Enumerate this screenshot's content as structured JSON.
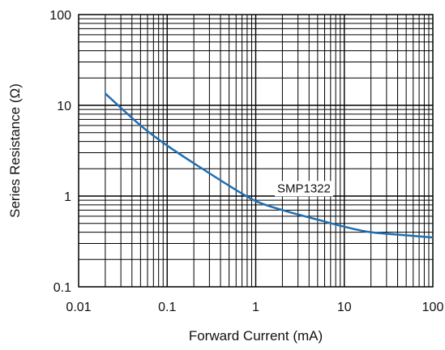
{
  "chart_data": {
    "type": "line",
    "xlabel": "Forward Current (mA)",
    "ylabel": "Series Resistance (Ω)",
    "x_scale": "log",
    "y_scale": "log",
    "xlim": [
      0.01,
      100
    ],
    "ylim": [
      0.1,
      100
    ],
    "grid": true,
    "x_ticks": [
      "0.01",
      "0.1",
      "1",
      "10",
      "100"
    ],
    "y_ticks": [
      "0.1",
      "1",
      "10",
      "100"
    ],
    "series": [
      {
        "name": "SMP1322",
        "color": "#1f6fb2",
        "x": [
          0.02,
          0.05,
          0.1,
          0.2,
          0.5,
          1,
          2,
          5,
          10,
          20,
          50,
          100
        ],
        "y": [
          13.5,
          6.0,
          3.6,
          2.3,
          1.3,
          0.88,
          0.7,
          0.55,
          0.46,
          0.4,
          0.37,
          0.35
        ]
      }
    ],
    "annotations": [
      {
        "text": "SMP1322",
        "x": 3.5,
        "y": 1.1
      }
    ]
  }
}
